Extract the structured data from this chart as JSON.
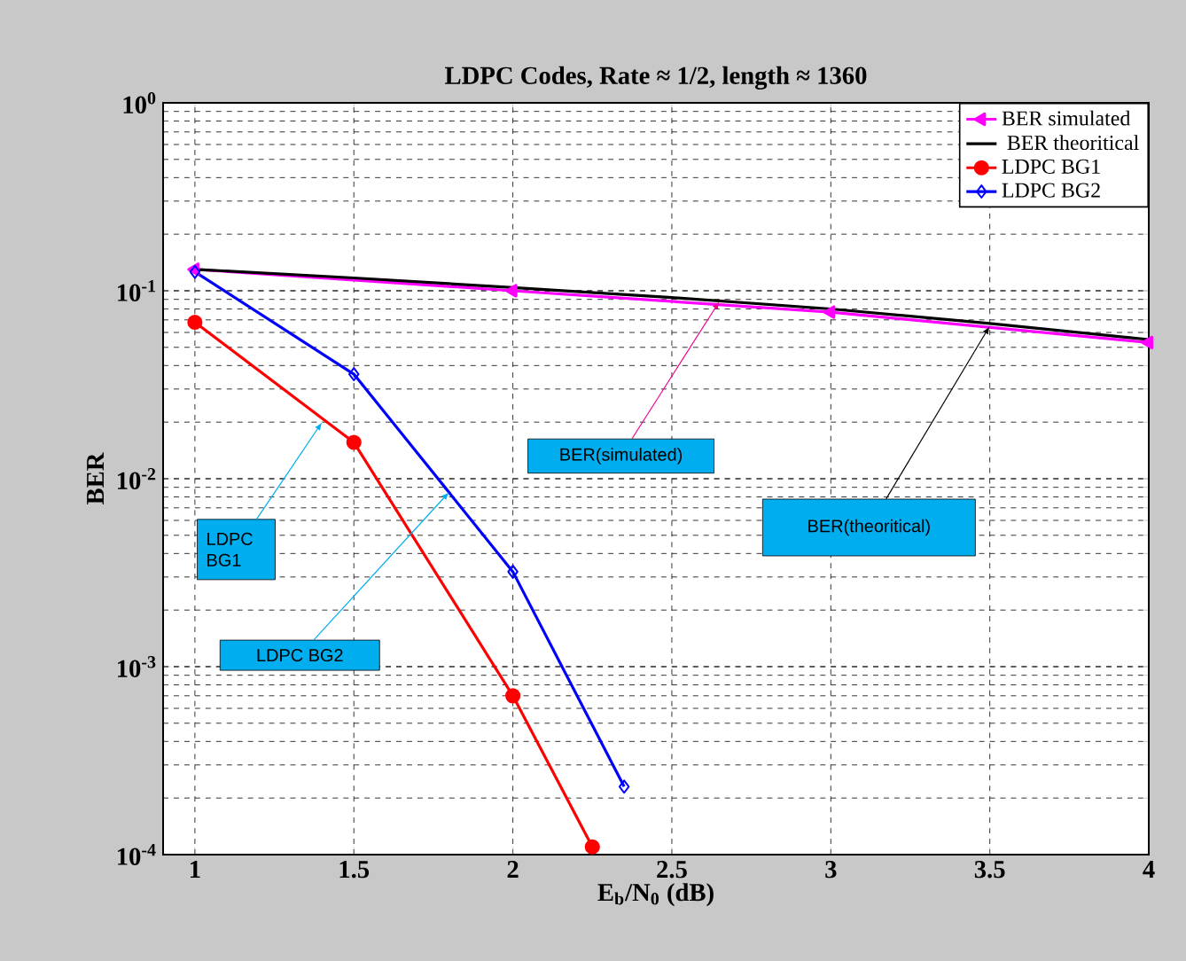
{
  "chart_data": {
    "type": "line",
    "title": "LDPC Codes, Rate ≈ 1/2, length ≈ 1360",
    "xlabel": "E$_{b}$/N$_{0}$ (dB)",
    "ylabel": "BER",
    "log": "y",
    "grid": true,
    "legend": "top right",
    "xlim": [
      0.9,
      4
    ],
    "ylim": [
      0.0001,
      1
    ],
    "xticks": [
      1,
      1.5,
      2,
      2.5,
      3,
      3.5,
      4
    ],
    "yticks": [
      {
        "value": 0.0001,
        "label": "10$^{-4}$"
      },
      {
        "value": 0.001,
        "label": "10$^{-3}$"
      },
      {
        "value": 0.01,
        "label": "10$^{-2}$"
      },
      {
        "value": 0.1,
        "label": "10$^{-1}$"
      },
      {
        "value": 1,
        "label": "10$^{0}$"
      }
    ],
    "series": [
      {
        "name": "BER simulated",
        "color": "#ff00ff",
        "marker": "triangle",
        "x": [
          1,
          2,
          3,
          4
        ],
        "values": [
          0.13,
          0.1,
          0.077,
          0.053
        ]
      },
      {
        "name": " BER theoritical",
        "color": "#000000",
        "marker": "none",
        "x": [
          1,
          1.5,
          2,
          2.5,
          3,
          3.5,
          4
        ],
        "values": [
          0.13,
          0.117,
          0.104,
          0.092,
          0.08,
          0.067,
          0.055
        ]
      },
      {
        "name": "LDPC BG1",
        "color": "#ff0000",
        "marker": "circle",
        "x": [
          1,
          1.5,
          2,
          2.25
        ],
        "values": [
          0.068,
          0.0156,
          0.0007,
          0.00011
        ]
      },
      {
        "name": "LDPC BG2",
        "color": "#0000ff",
        "marker": "diamond",
        "x": [
          1,
          1.5,
          2,
          2.35
        ],
        "values": [
          0.126,
          0.036,
          0.0032,
          0.00023
        ]
      }
    ],
    "annotations": [
      {
        "text": "LDPC BG1",
        "x": 1.4,
        "y": 0.02
      },
      {
        "text": "LDPC BG2",
        "x": 1.8,
        "y": 0.0085
      },
      {
        "text": "BER(simulated)",
        "x": 2.65,
        "y": 0.088
      },
      {
        "text": "BER(theoritical)",
        "x": 3.5,
        "y": 0.065
      }
    ]
  }
}
